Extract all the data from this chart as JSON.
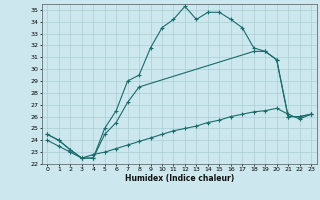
{
  "xlabel": "Humidex (Indice chaleur)",
  "background_color": "#cce8ee",
  "grid_color": "#aacdd6",
  "line_color": "#1a6b6b",
  "xlim": [
    -0.5,
    23.5
  ],
  "ylim": [
    22,
    35.5
  ],
  "xticks": [
    0,
    1,
    2,
    3,
    4,
    5,
    6,
    7,
    8,
    9,
    10,
    11,
    12,
    13,
    14,
    15,
    16,
    17,
    18,
    19,
    20,
    21,
    22,
    23
  ],
  "yticks": [
    22,
    23,
    24,
    25,
    26,
    27,
    28,
    29,
    30,
    31,
    32,
    33,
    34,
    35
  ],
  "line1_x": [
    0,
    1,
    2,
    3,
    4,
    5,
    6,
    7,
    8,
    9,
    10,
    11,
    12,
    13,
    14,
    15,
    16,
    17,
    18,
    19,
    20,
    21,
    22,
    23
  ],
  "line1_y": [
    24.5,
    24.0,
    23.2,
    22.5,
    22.5,
    25.0,
    26.5,
    29.0,
    29.5,
    31.8,
    33.5,
    34.2,
    35.3,
    34.2,
    34.8,
    34.8,
    34.2,
    33.5,
    31.8,
    31.5,
    30.8,
    26.0,
    26.0,
    26.2
  ],
  "line2_x": [
    0,
    1,
    2,
    3,
    4,
    5,
    6,
    7,
    8,
    18,
    19,
    20,
    21,
    22,
    23
  ],
  "line2_y": [
    24.5,
    24.0,
    23.2,
    22.5,
    22.5,
    24.5,
    25.5,
    27.2,
    28.5,
    31.5,
    31.5,
    30.8,
    26.0,
    26.0,
    26.2
  ],
  "line3_x": [
    0,
    1,
    2,
    3,
    4,
    5,
    6,
    7,
    8,
    9,
    10,
    11,
    12,
    13,
    14,
    15,
    16,
    17,
    18,
    19,
    20,
    21,
    22,
    23
  ],
  "line3_y": [
    24.0,
    23.5,
    23.0,
    22.5,
    22.8,
    23.0,
    23.3,
    23.6,
    23.9,
    24.2,
    24.5,
    24.8,
    25.0,
    25.2,
    25.5,
    25.7,
    26.0,
    26.2,
    26.4,
    26.5,
    26.7,
    26.2,
    25.8,
    26.2
  ]
}
